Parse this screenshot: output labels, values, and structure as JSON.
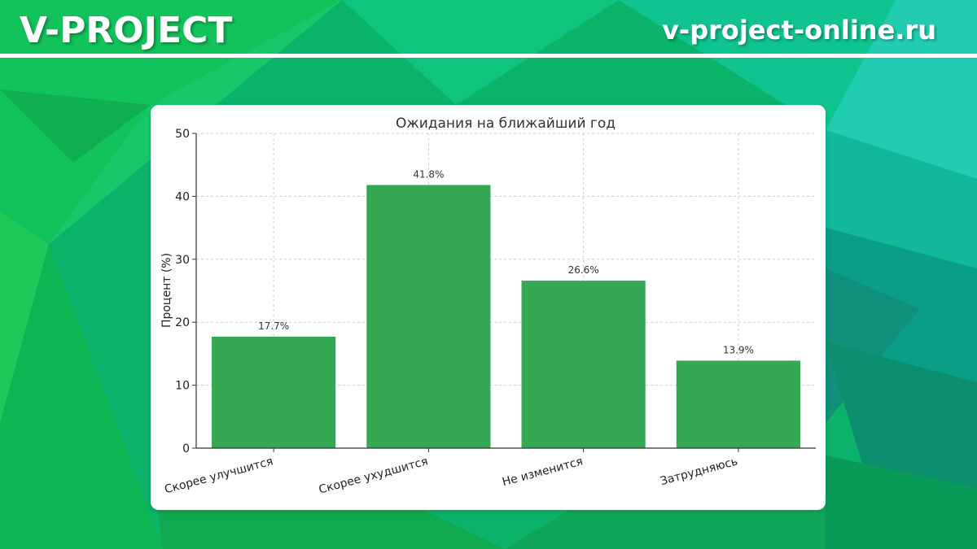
{
  "header": {
    "brand": "V-PROJECT",
    "url": "v-project-online.ru"
  },
  "colors": {
    "bar": "#34a853",
    "grid": "#cccccc",
    "axis": "#333333"
  },
  "chart_data": {
    "type": "bar",
    "title": "Ожидания на ближайший год",
    "xlabel": "",
    "ylabel": "Процент (%)",
    "categories": [
      "Скорее улучшится",
      "Скорее ухудшится",
      "Не изменится",
      "Затрудняюсь"
    ],
    "values": [
      17.7,
      41.8,
      26.6,
      13.9
    ],
    "value_labels": [
      "17.7%",
      "41.8%",
      "26.6%",
      "13.9%"
    ],
    "ylim": [
      0,
      50
    ],
    "yticks": [
      0,
      10,
      20,
      30,
      40,
      50
    ],
    "grid": true
  }
}
